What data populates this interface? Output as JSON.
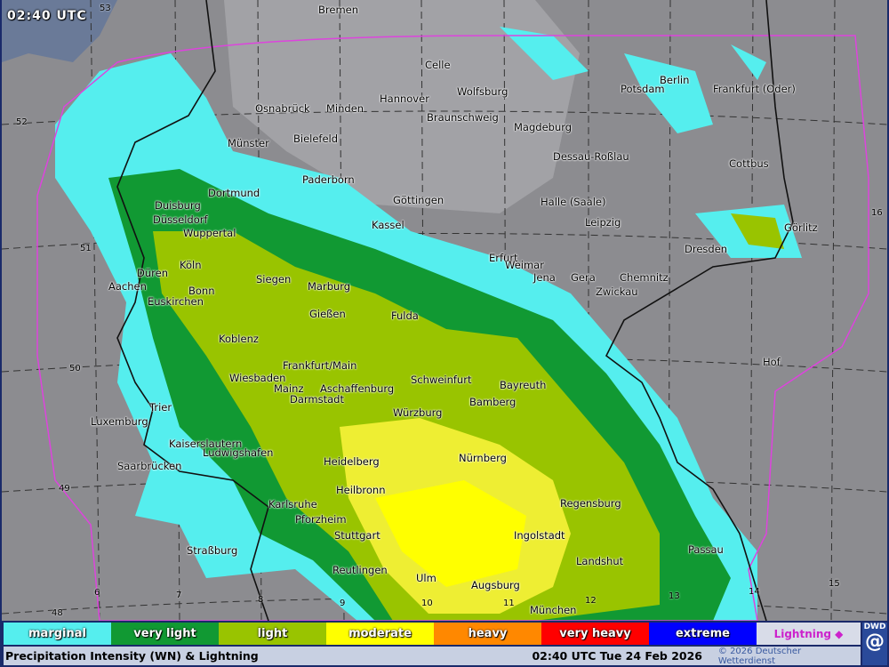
{
  "map": {
    "time_label": "02:40 UTC",
    "cities": [
      "Bremen",
      "Celle",
      "Hannover",
      "Wolfsburg",
      "Potsdam",
      "Berlin",
      "Frankfurt (Oder)",
      "Osnabrück",
      "Minden",
      "Braunschweig",
      "Magdeburg",
      "Münster",
      "Bielefeld",
      "Dessau-Roßlau",
      "Cottbus",
      "Dortmund",
      "Duisburg",
      "Paderborn",
      "Göttingen",
      "Halle (Saale)",
      "Düsseldorf",
      "Kassel",
      "Leipzig",
      "Wuppertal",
      "Dresden",
      "Görlitz",
      "Erfurt",
      "Weimar",
      "Jena",
      "Gera",
      "Chemnitz",
      "Zwickau",
      "Düren",
      "Köln",
      "Siegen",
      "Marburg",
      "Aachen",
      "Bonn",
      "Euskirchen",
      "Gießen",
      "Fulda",
      "Koblenz",
      "Frankfurt/Main",
      "Wiesbaden",
      "Mainz",
      "Aschaffenburg",
      "Schweinfurt",
      "Bayreuth",
      "Darmstadt",
      "Bamberg",
      "Hof",
      "Trier",
      "Würzburg",
      "Luxemburg",
      "Kaiserslautern",
      "Ludwigshafen",
      "Heidelberg",
      "Nürnberg",
      "Saarbrücken",
      "Heilbronn",
      "Karlsruhe",
      "Regensburg",
      "Pforzheim",
      "Stuttgart",
      "Ingolstadt",
      "Straßburg",
      "Passau",
      "Landshut",
      "Reutlingen",
      "Ulm",
      "Augsburg",
      "München"
    ],
    "latitudes": [
      "53",
      "52",
      "51",
      "50",
      "49",
      "48"
    ],
    "longitudes": [
      "6",
      "7",
      "8",
      "9",
      "10",
      "11",
      "12",
      "13",
      "14",
      "15",
      "16"
    ]
  },
  "legend": {
    "items": [
      {
        "label": "marginal",
        "color": "#55eeee"
      },
      {
        "label": "very light",
        "color": "#119933"
      },
      {
        "label": "light",
        "color": "#99c400"
      },
      {
        "label": "moderate",
        "color": "#ffff00"
      },
      {
        "label": "heavy",
        "color": "#ff8800"
      },
      {
        "label": "very heavy",
        "color": "#ff0000"
      },
      {
        "label": "extreme",
        "color": "#0000ff"
      },
      {
        "label": "Lightning ◆",
        "color": "#cc22cc"
      }
    ]
  },
  "footer": {
    "title": "Precipitation Intensity (WN) & Lightning",
    "datetime": "02:40 UTC Tue 24 Feb 2026",
    "copyright": "© 2026 Deutscher Wetterdienst",
    "logo": "DWD"
  }
}
